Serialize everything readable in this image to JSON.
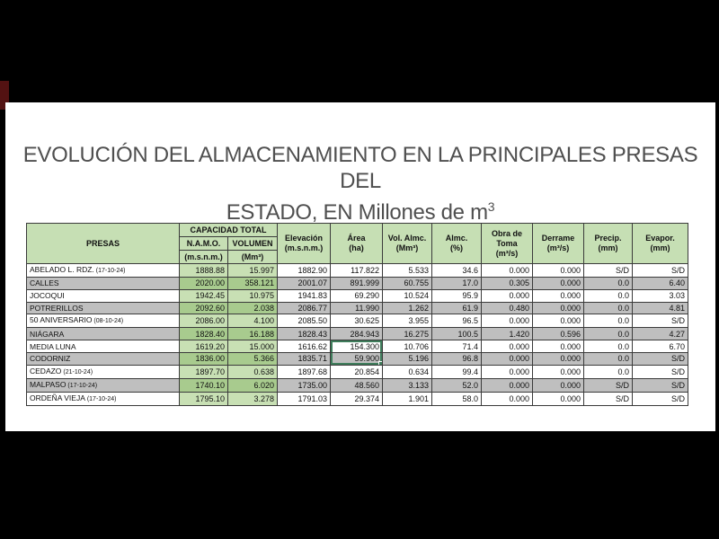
{
  "title": {
    "line1": "EVOLUCIÓN DEL ALMACENAMIENTO EN LA PRINCIPALES PRESAS DEL",
    "line2_prefix": "ESTADO, EN Millones de m",
    "line2_sup": "3"
  },
  "table": {
    "presas_header": "PRESAS",
    "capacidad_total_header": "CAPACIDAD TOTAL",
    "capacidad_sub": [
      {
        "label": "N.A.M.O.",
        "unit": "(m.s.n.m.)"
      },
      {
        "label": "VOLUMEN",
        "unit": "(Mm³)"
      }
    ],
    "columns": [
      {
        "label": "Elevación",
        "unit": "(m.s.n.m.)"
      },
      {
        "label": "Área",
        "unit": "(ha)"
      },
      {
        "label": "Vol. Almc.",
        "unit": "(Mm³)"
      },
      {
        "label": "Almc.",
        "unit": "(%)"
      },
      {
        "label": "Obra de Toma",
        "unit": "(m³/s)"
      },
      {
        "label": "Derrame",
        "unit": "(m³/s)"
      },
      {
        "label": "Precip.",
        "unit": "(mm)"
      },
      {
        "label": "Evapor.",
        "unit": "(mm)"
      }
    ],
    "rows": [
      {
        "name": "ABELADO L. RDZ.",
        "date": "(17-10-24)",
        "namo": "1888.88",
        "volumen": "15.997",
        "elevacion": "1882.90",
        "area": "117.822",
        "vol_almc": "5.533",
        "almc": "34.6",
        "obra_toma": "0.000",
        "derrame": "0.000",
        "precip": "S/D",
        "evapor": "S/D"
      },
      {
        "name": "CALLES",
        "date": "",
        "namo": "2020.00",
        "volumen": "358.121",
        "elevacion": "2001.07",
        "area": "891.999",
        "vol_almc": "60.755",
        "almc": "17.0",
        "obra_toma": "0.305",
        "derrame": "0.000",
        "precip": "0.0",
        "evapor": "6.40"
      },
      {
        "name": "JOCOQUI",
        "date": "",
        "namo": "1942.45",
        "volumen": "10.975",
        "elevacion": "1941.83",
        "area": "69.290",
        "vol_almc": "10.524",
        "almc": "95.9",
        "obra_toma": "0.000",
        "derrame": "0.000",
        "precip": "0.0",
        "evapor": "3.03"
      },
      {
        "name": "POTRERILLOS",
        "date": "",
        "namo": "2092.60",
        "volumen": "2.038",
        "elevacion": "2086.77",
        "area": "11.990",
        "vol_almc": "1.262",
        "almc": "61.9",
        "obra_toma": "0.480",
        "derrame": "0.000",
        "precip": "0.0",
        "evapor": "4.81"
      },
      {
        "name": "50 ANIVERSARIO",
        "date": "(08-10-24)",
        "namo": "2086.00",
        "volumen": "4.100",
        "elevacion": "2085.50",
        "area": "30.625",
        "vol_almc": "3.955",
        "almc": "96.5",
        "obra_toma": "0.000",
        "derrame": "0.000",
        "precip": "0.0",
        "evapor": "S/D"
      },
      {
        "name": "NIÁGARA",
        "date": "",
        "namo": "1828.40",
        "volumen": "16.188",
        "elevacion": "1828.43",
        "area": "284.943",
        "vol_almc": "16.275",
        "almc": "100.5",
        "obra_toma": "1.420",
        "derrame": "0.596",
        "precip": "0.0",
        "evapor": "4.27"
      },
      {
        "name": "MEDIA LUNA",
        "date": "",
        "namo": "1619.20",
        "volumen": "15.000",
        "elevacion": "1616.62",
        "area": "154.300",
        "vol_almc": "10.706",
        "almc": "71.4",
        "obra_toma": "0.000",
        "derrame": "0.000",
        "precip": "0.0",
        "evapor": "6.70"
      },
      {
        "name": "CODORNIZ",
        "date": "",
        "namo": "1836.00",
        "volumen": "5.366",
        "elevacion": "1835.71",
        "area": "59.900",
        "vol_almc": "5.196",
        "almc": "96.8",
        "obra_toma": "0.000",
        "derrame": "0.000",
        "precip": "0.0",
        "evapor": "S/D"
      },
      {
        "name": "CEDAZO",
        "date": "(21-10-24)",
        "namo": "1897.70",
        "volumen": "0.638",
        "elevacion": "1897.68",
        "area": "20.854",
        "vol_almc": "0.634",
        "almc": "99.4",
        "obra_toma": "0.000",
        "derrame": "0.000",
        "precip": "0.0",
        "evapor": "S/D"
      },
      {
        "name": "MALPASO",
        "date": "(17-10-24)",
        "namo": "1740.10",
        "volumen": "6.020",
        "elevacion": "1735.00",
        "area": "48.560",
        "vol_almc": "3.133",
        "almc": "52.0",
        "obra_toma": "0.000",
        "derrame": "0.000",
        "precip": "S/D",
        "evapor": "S/D"
      },
      {
        "name": "ORDEÑA VIEJA",
        "date": "(17-10-24)",
        "namo": "1795.10",
        "volumen": "3.278",
        "elevacion": "1791.03",
        "area": "29.374",
        "vol_almc": "1.901",
        "almc": "58.0",
        "obra_toma": "0.000",
        "derrame": "0.000",
        "precip": "S/D",
        "evapor": "S/D"
      }
    ],
    "selection": {
      "column": "area",
      "row_start": 6,
      "row_end": 7
    }
  },
  "colors": {
    "header_green": "#c6dfb4",
    "row_gray": "#bfbfbf",
    "green_light": "#c8e0b4",
    "green_dark": "#a8cb8e",
    "sel": "#3e7d5b",
    "accent_red": "#531212",
    "border": "#3b3b3b",
    "title_color": "#4f4f4f"
  }
}
